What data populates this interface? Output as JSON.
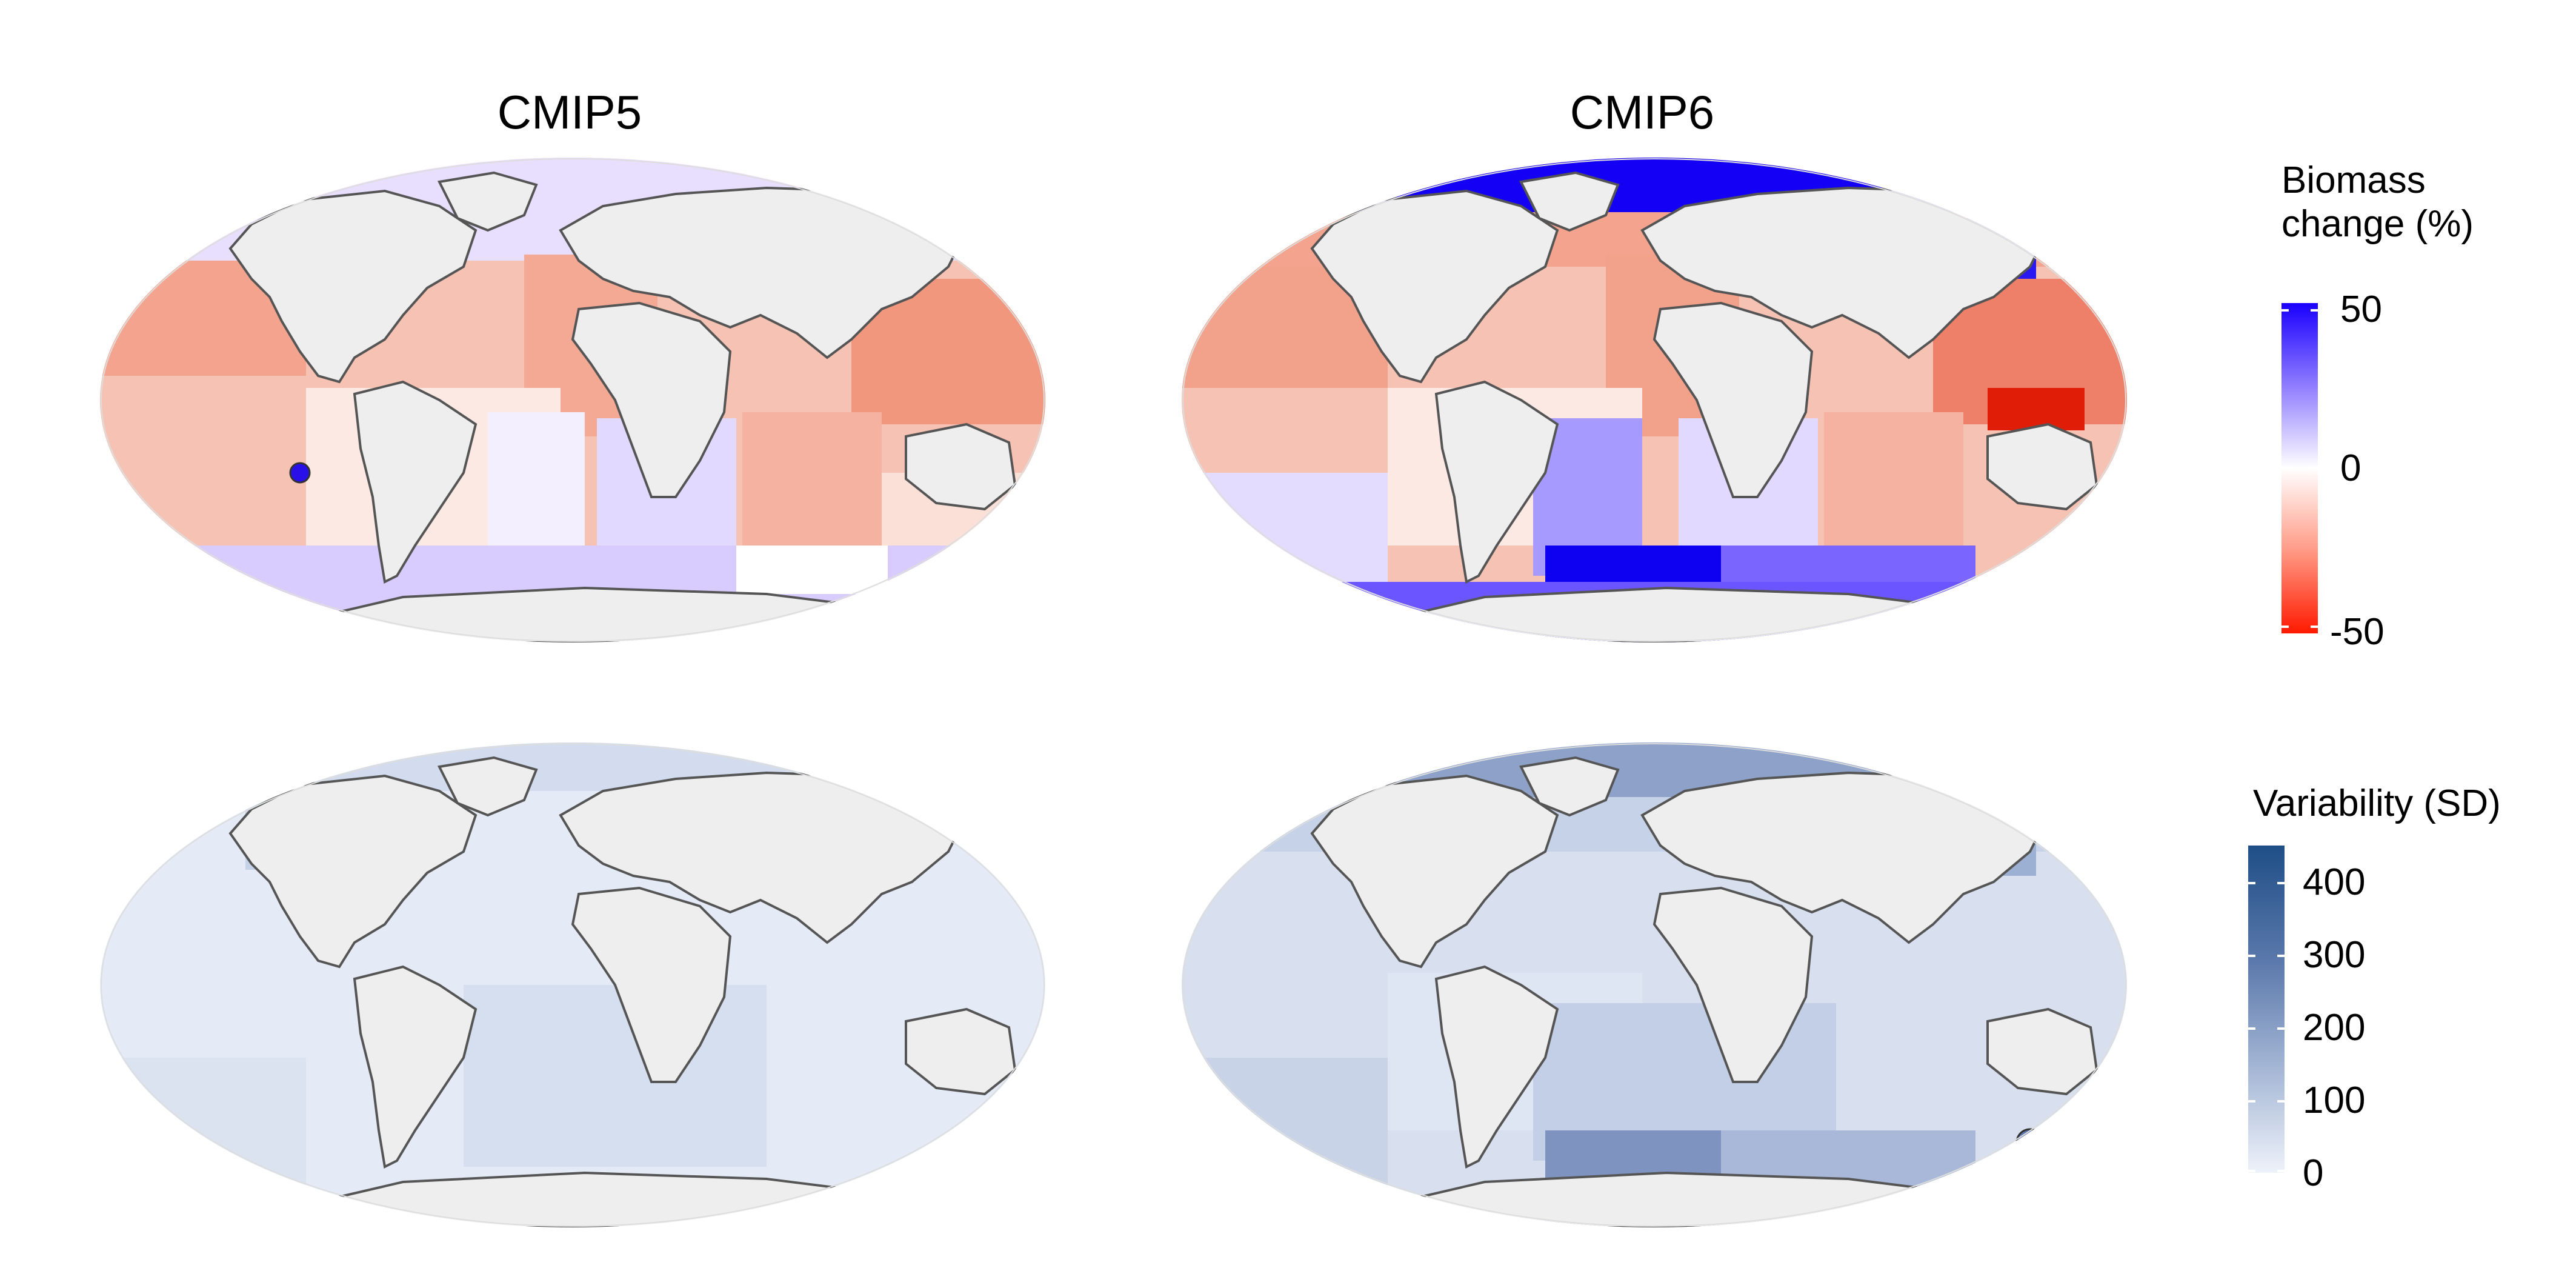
{
  "panels": {
    "cmip5_title": "CMIP5",
    "cmip6_title": "CMIP6"
  },
  "legend_biomass": {
    "title_line1": "Biomass",
    "title_line2": "change (%)",
    "ticks": [
      "50",
      "0",
      "-50"
    ],
    "colors": {
      "high": "#1a00ff",
      "mid": "#ffffff",
      "low": "#ff1a00"
    }
  },
  "legend_variability": {
    "title": "Variability (SD)",
    "ticks": [
      "400",
      "300",
      "200",
      "100",
      "0"
    ],
    "colors": {
      "high": "#1e4e86",
      "low": "#eef2fa"
    }
  },
  "map_colors": {
    "land": "#eeeeee",
    "coast": "#555555"
  }
}
